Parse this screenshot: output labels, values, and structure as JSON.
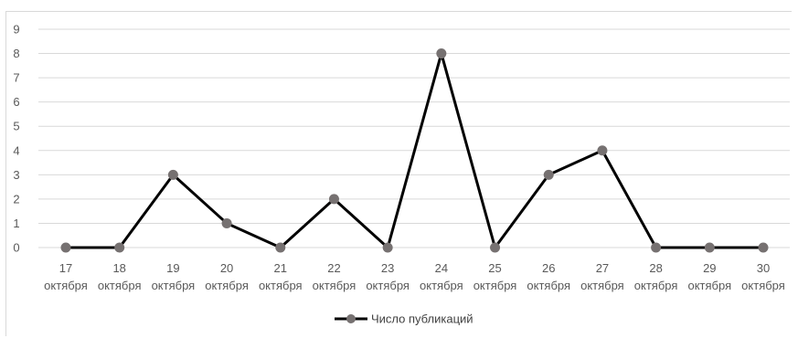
{
  "chart_data": {
    "type": "line",
    "categories": [
      [
        "17",
        "октября"
      ],
      [
        "18",
        "октября"
      ],
      [
        "19",
        "октября"
      ],
      [
        "20",
        "октября"
      ],
      [
        "21",
        "октября"
      ],
      [
        "22",
        "октября"
      ],
      [
        "23",
        "октября"
      ],
      [
        "24",
        "октября"
      ],
      [
        "25",
        "октября"
      ],
      [
        "26",
        "октября"
      ],
      [
        "27",
        "октября"
      ],
      [
        "28",
        "октября"
      ],
      [
        "29",
        "октября"
      ],
      [
        "30",
        "октября"
      ]
    ],
    "series": [
      {
        "name": "Число публикаций",
        "values": [
          0,
          0,
          3,
          1,
          0,
          2,
          0,
          8,
          0,
          3,
          4,
          0,
          0,
          0
        ]
      }
    ],
    "ylim": [
      0,
      9
    ],
    "yticks": [
      0,
      1,
      2,
      3,
      4,
      5,
      6,
      7,
      8,
      9
    ],
    "grid": true,
    "legend": "bottom-center",
    "colors": {
      "line": "#000000",
      "marker": "#767171",
      "grid": "#d9d9d9",
      "axis_text": "#595959"
    }
  }
}
